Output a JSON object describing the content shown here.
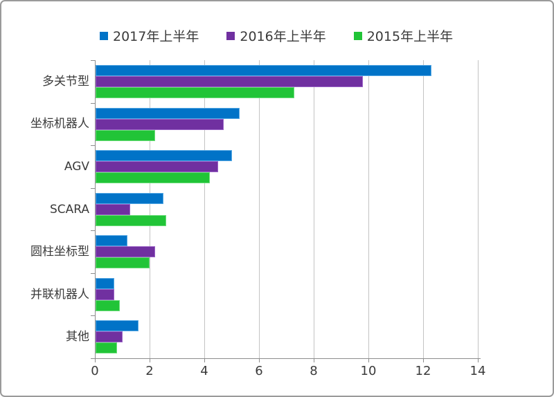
{
  "chart_data": {
    "type": "bar",
    "orientation": "horizontal",
    "title": "",
    "xlabel": "",
    "ylabel": "",
    "categories": [
      "多关节型",
      "坐标机器人",
      "AGV",
      "SCARA",
      "圆柱坐标型",
      "并联机器人",
      "其他"
    ],
    "series": [
      {
        "name": "2017年上半年",
        "color": "#0173c7",
        "border_color": "#57a9e4",
        "values": [
          12.3,
          5.3,
          5.0,
          2.5,
          1.2,
          0.7,
          1.6
        ]
      },
      {
        "name": "2016年上半年",
        "color": "#7030a0",
        "border_color": "#9b63c7",
        "values": [
          9.8,
          4.7,
          4.5,
          1.3,
          2.2,
          0.7,
          1.0
        ]
      },
      {
        "name": "2015年上半年",
        "color": "#21c437",
        "border_color": "#6cdd7b",
        "values": [
          7.3,
          2.2,
          4.2,
          2.6,
          2.0,
          0.9,
          0.8
        ]
      }
    ],
    "xlim": [
      0,
      14
    ],
    "xticks": [
      0,
      2,
      4,
      6,
      8,
      10,
      12,
      14
    ],
    "grid": true,
    "legend_position": "top",
    "colors": {
      "axis": "#8c8c8c",
      "gridline": "#c3c3c3",
      "text": "#3a3a3a",
      "frame_border": "#9a9a9a",
      "background": "#ffffff"
    }
  }
}
